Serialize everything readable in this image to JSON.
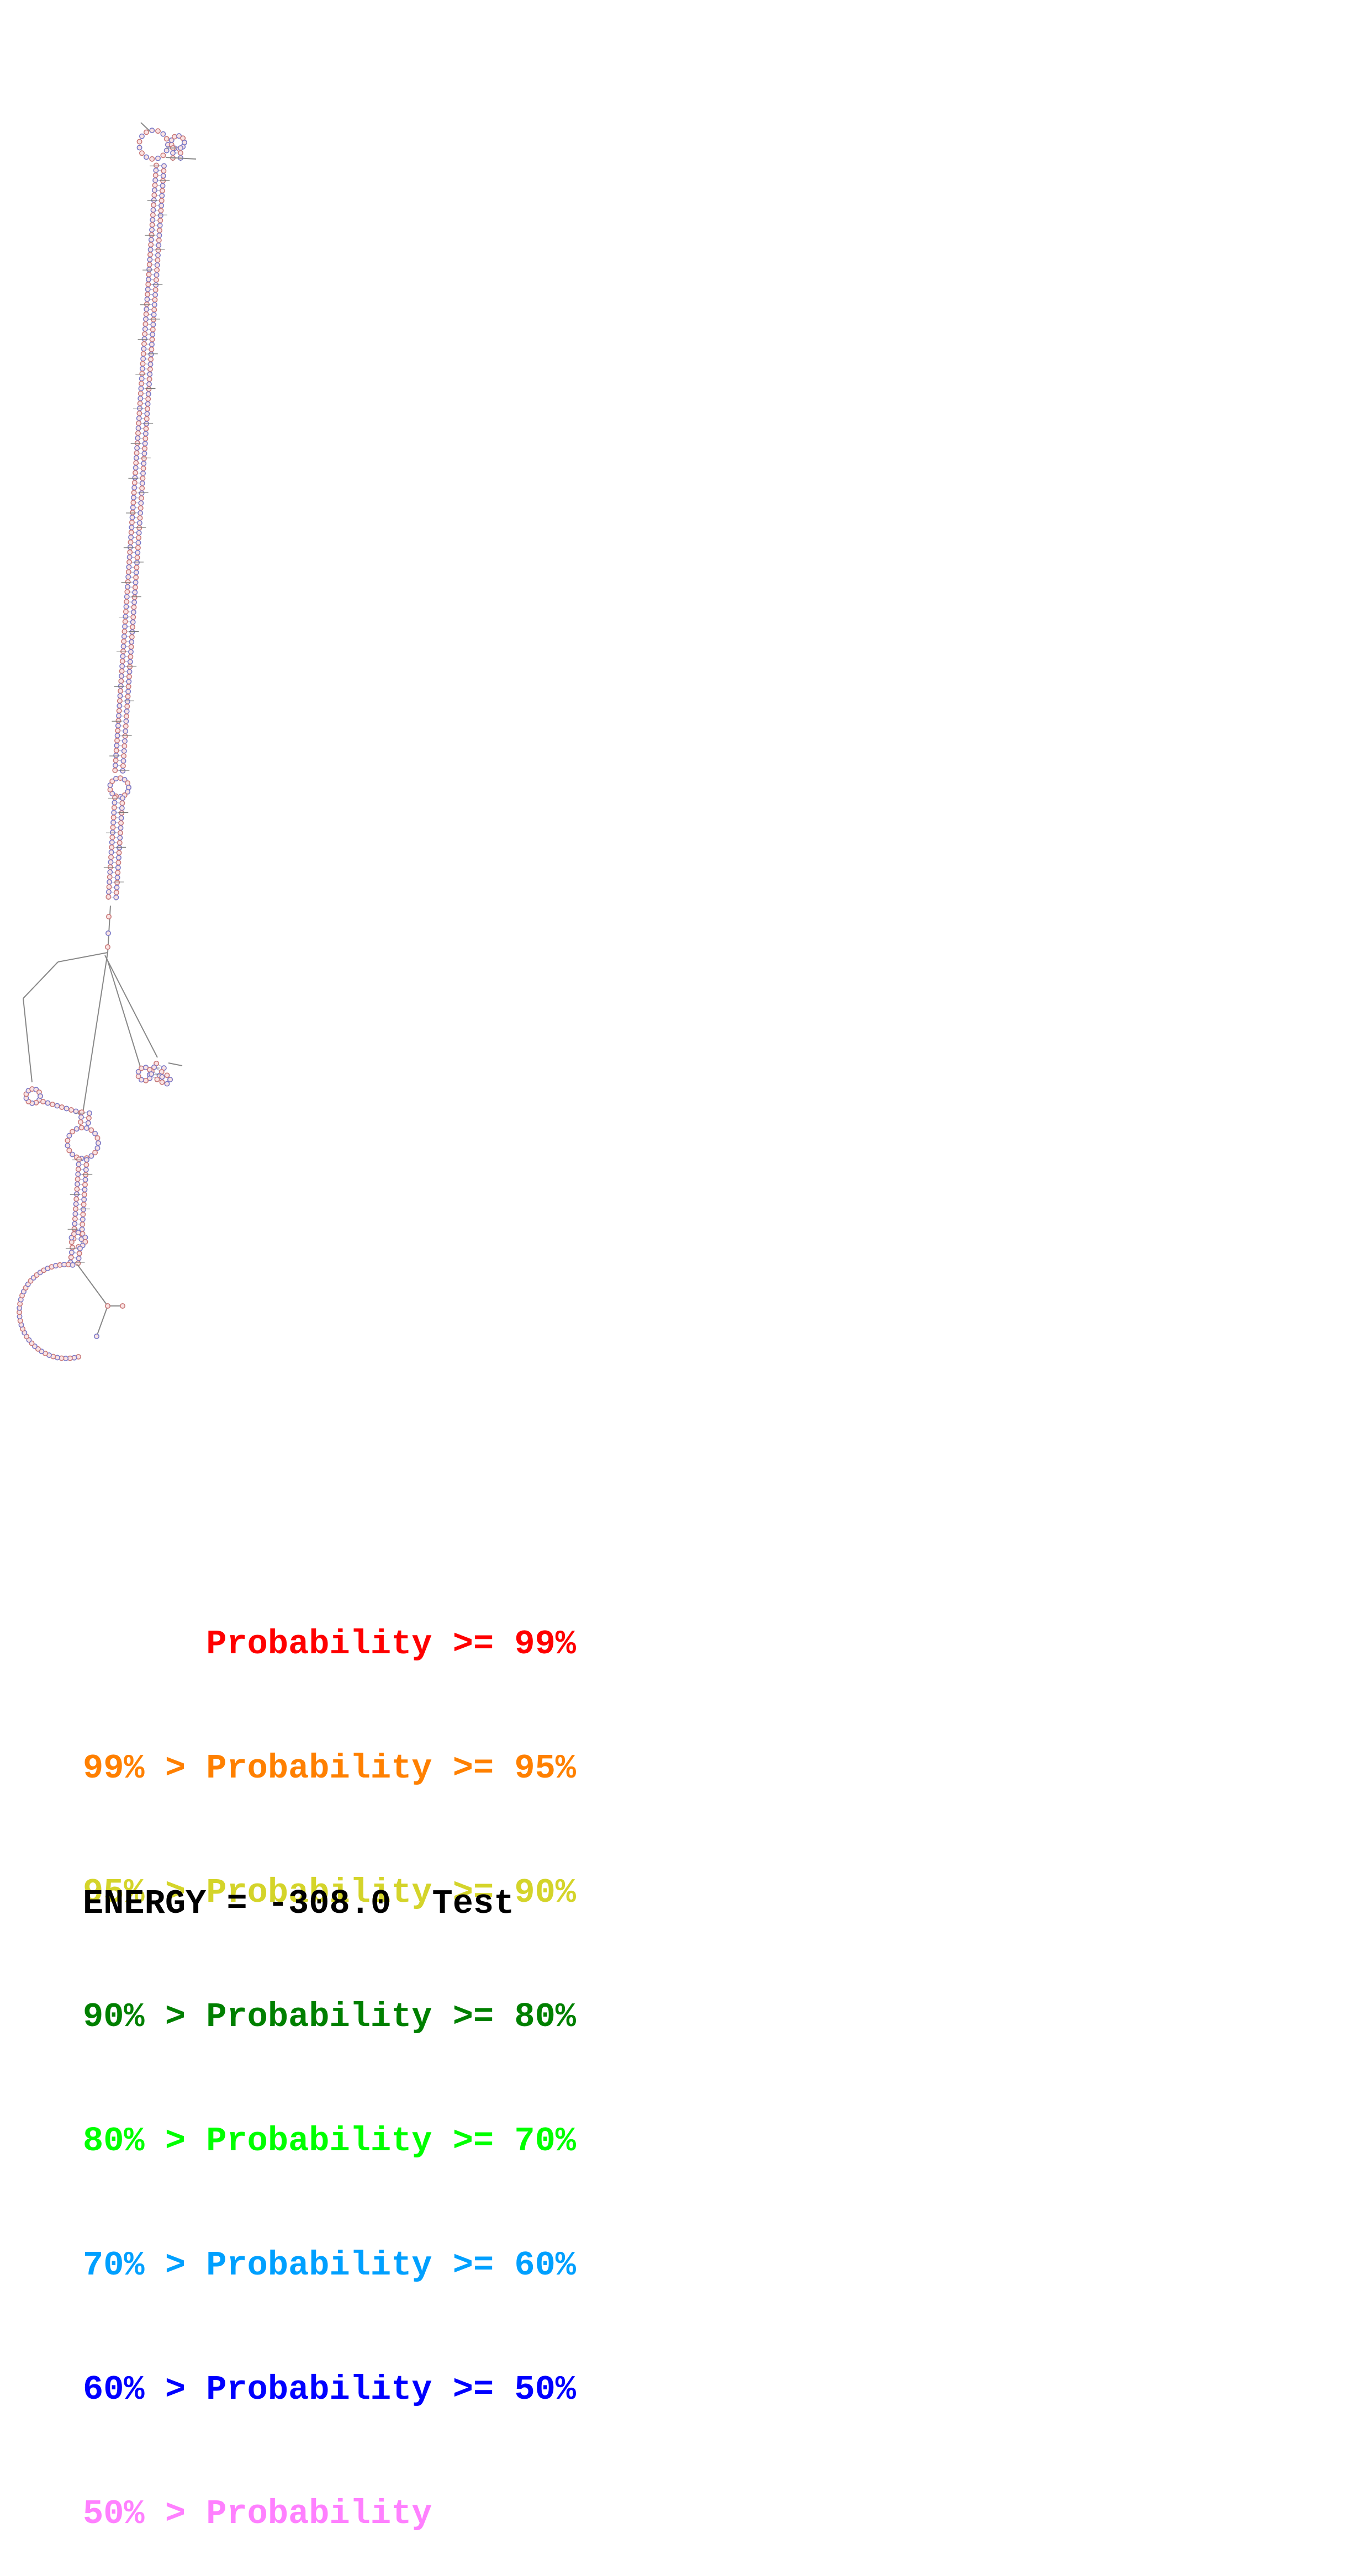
{
  "diagram": {
    "type": "rna-secondary-structure",
    "nucleotide_fill": "#fbe3e3",
    "nucleotide_stroke_colors": [
      "#c87878",
      "#7878c8"
    ],
    "backbone_color": "#888888"
  },
  "legend": {
    "items": [
      {
        "prefix": "    ",
        "label": "Probability",
        "suffix": ">= 99%",
        "color": "#ff0000"
      },
      {
        "prefix": "99% > ",
        "label": "Probability",
        "suffix": ">= 95%",
        "color": "#ff8000"
      },
      {
        "prefix": "95% > ",
        "label": "Probability",
        "suffix": ">= 90%",
        "color": "#d4d42a"
      },
      {
        "prefix": "90% > ",
        "label": "Probability",
        "suffix": ">= 80%",
        "color": "#008000"
      },
      {
        "prefix": "80% > ",
        "label": "Probability",
        "suffix": ">= 70%",
        "color": "#00ff00"
      },
      {
        "prefix": "70% > ",
        "label": "Probability",
        "suffix": ">= 60%",
        "color": "#00a0ff"
      },
      {
        "prefix": "60% > ",
        "label": "Probability",
        "suffix": ">= 50%",
        "color": "#0000ff"
      },
      {
        "prefix": "50% > ",
        "label": "Probability",
        "suffix": "",
        "color": "#ff80ff"
      }
    ]
  },
  "energy": {
    "text": "ENERGY = -308.0  Test"
  }
}
